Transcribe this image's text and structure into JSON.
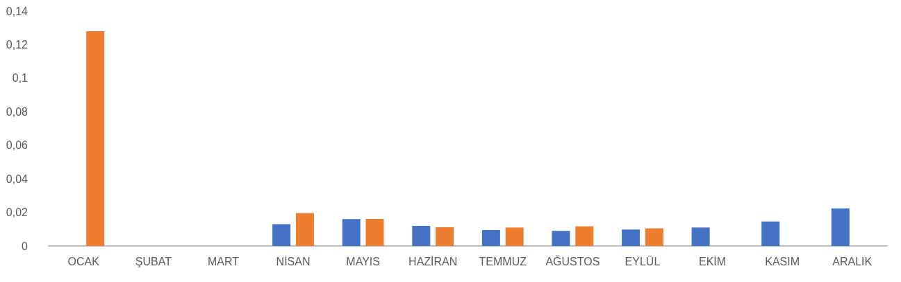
{
  "chart_data": {
    "type": "bar",
    "categories": [
      "OCAK",
      "ŞUBAT",
      "MART",
      "NİSAN",
      "MAYIS",
      "HAZİRAN",
      "TEMMUZ",
      "AĞUSTOS",
      "EYLÜL",
      "EKİM",
      "KASIM",
      "ARALIK"
    ],
    "series": [
      {
        "color": "#4472c4",
        "values": [
          null,
          null,
          null,
          0.013,
          0.016,
          0.012,
          0.0095,
          0.009,
          0.0098,
          0.011,
          0.0146,
          0.0224
        ]
      },
      {
        "color": "#ed7d31",
        "values": [
          0.128,
          null,
          null,
          0.0196,
          0.0161,
          0.0112,
          0.011,
          0.0117,
          0.0105,
          null,
          null,
          null
        ]
      }
    ],
    "ylim": [
      0,
      0.14
    ],
    "yticks": [
      {
        "value": 0,
        "label": "0"
      },
      {
        "value": 0.02,
        "label": "0,02"
      },
      {
        "value": 0.04,
        "label": "0,04"
      },
      {
        "value": 0.06,
        "label": "0,06"
      },
      {
        "value": 0.08,
        "label": "0,08"
      },
      {
        "value": 0.1,
        "label": "0,1"
      },
      {
        "value": 0.12,
        "label": "0,12"
      },
      {
        "value": 0.14,
        "label": "0,14"
      }
    ],
    "grid": false
  }
}
